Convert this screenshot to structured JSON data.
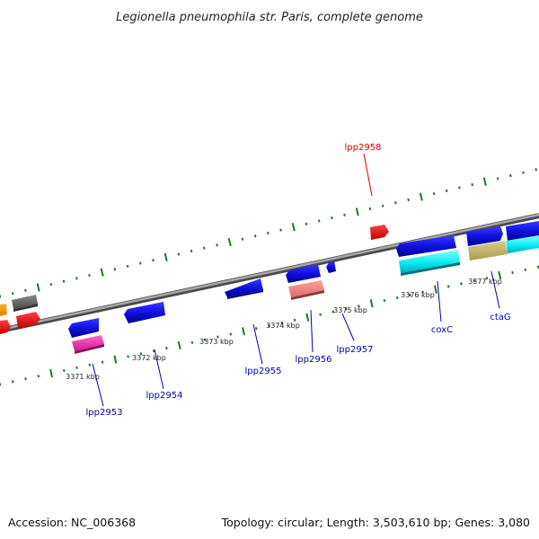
{
  "title": "Legionella pneumophila str. Paris, complete genome",
  "accession_label": "Accession: NC_006368",
  "summary_label": "Topology: circular; Length: 3,503,610 bp; Genes: 3,080",
  "scale_labels": [
    "3371 kbp",
    "3372 kbp",
    "3373 kbp",
    "3374 kbp",
    "3375 kbp",
    "3376 kbp",
    "3377 kbp"
  ],
  "gene_labels": {
    "lpp2958": "lpp2958",
    "lpp2953": "lpp2953",
    "lpp2954": "lpp2954",
    "lpp2955": "lpp2955",
    "lpp2956": "lpp2956",
    "lpp2957": "lpp2957",
    "coxC": "coxC",
    "ctaG": "ctaG"
  },
  "colors": {
    "backbone": "#8a8a8a",
    "tick": "#1e7a1e",
    "forward_label": "#dd0000",
    "reverse_label": "#0000aa"
  }
}
